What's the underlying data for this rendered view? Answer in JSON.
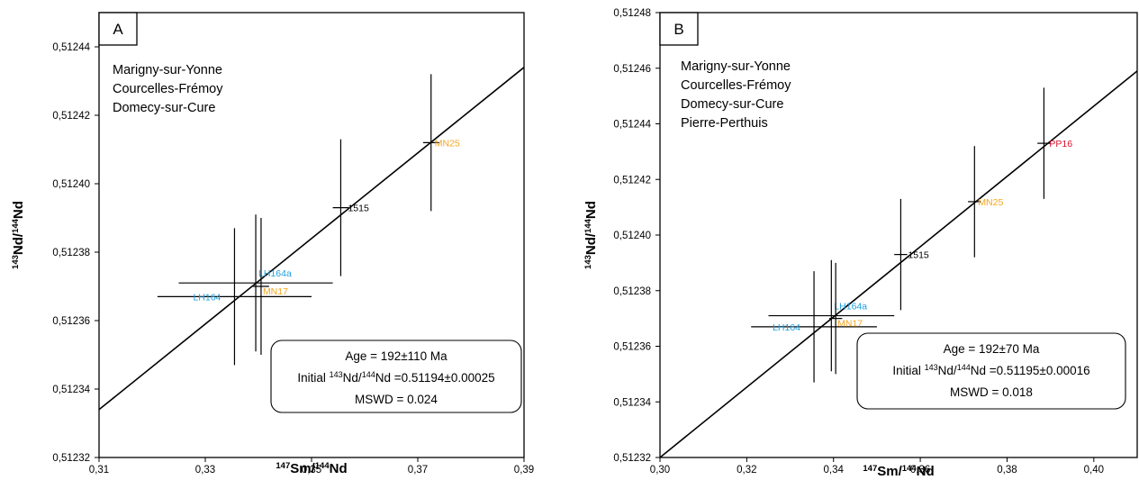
{
  "colors": {
    "black": "#000000",
    "orange": "#f4a51f",
    "blue": "#1f9fe0",
    "red": "#d8102c"
  },
  "chart_data": [
    {
      "type": "scatter",
      "panel_label": "A",
      "xlabel": {
        "pre": "147",
        "mid": "Sm/",
        "sup": "144",
        "post": "Nd"
      },
      "ylabel": {
        "pre": "143",
        "mid": "Nd/",
        "sup": "144",
        "post": "Nd"
      },
      "xlim": [
        0.31,
        0.39
      ],
      "ylim": [
        0.51232,
        0.51245
      ],
      "xticks": [
        0.31,
        0.33,
        0.35,
        0.37,
        0.39
      ],
      "xtick_labels": [
        "0,31",
        "0,33",
        "0,35",
        "0,37",
        "0,39"
      ],
      "yticks": [
        0.51232,
        0.51234,
        0.51236,
        0.51238,
        0.5124,
        0.51242,
        0.51244
      ],
      "ytick_labels": [
        "0,51232",
        "0,51234",
        "0,51236",
        "0,51238",
        "0,51240",
        "0,51242",
        "0,51244"
      ],
      "localities": [
        "Marigny-sur-Yonne",
        "Courcelles-Frémoy",
        "Domecy-sur-Cure"
      ],
      "points": [
        {
          "name": "LH164",
          "x": 0.3355,
          "y": 0.512367,
          "xerr": 0.0145,
          "yerr": 2e-05,
          "color": "blue"
        },
        {
          "name": "LH164a",
          "x": 0.3395,
          "y": 0.512371,
          "xerr": 0.0145,
          "yerr": 2e-05,
          "color": "blue"
        },
        {
          "name": "MN17",
          "x": 0.3405,
          "y": 0.51237,
          "xerr": 0.0015,
          "yerr": 2e-05,
          "color": "orange"
        },
        {
          "name": "1515",
          "x": 0.3555,
          "y": 0.512393,
          "xerr": 0.0015,
          "yerr": 2e-05,
          "color": "black"
        },
        {
          "name": "MN25",
          "x": 0.3725,
          "y": 0.512412,
          "xerr": 0.0015,
          "yerr": 2e-05,
          "color": "orange"
        }
      ],
      "isochron": {
        "x1": 0.31,
        "y1": 0.512334,
        "x2": 0.39,
        "y2": 0.512434
      },
      "annotation": {
        "age": "Age = 192±110 Ma",
        "initial_pre": "Initial ",
        "initial_sup1": "143",
        "initial_mid": "Nd/",
        "initial_sup2": "144",
        "initial_post": "Nd =0.51194±0.00025",
        "mswd": "MSWD = 0.024"
      }
    },
    {
      "type": "scatter",
      "panel_label": "B",
      "xlabel": {
        "pre": "147",
        "mid": "Sm/",
        "sup": "144",
        "post": "Nd"
      },
      "ylabel": {
        "pre": "143",
        "mid": "Nd/",
        "sup": "144",
        "post": "Nd"
      },
      "xlim": [
        0.3,
        0.41
      ],
      "ylim": [
        0.51232,
        0.51248
      ],
      "xticks": [
        0.3,
        0.32,
        0.34,
        0.36,
        0.38,
        0.4
      ],
      "xtick_labels": [
        "0,30",
        "0,32",
        "0,34",
        "0,36",
        "0,38",
        "0,40"
      ],
      "yticks": [
        0.51232,
        0.51234,
        0.51236,
        0.51238,
        0.5124,
        0.51242,
        0.51244,
        0.51246,
        0.51248
      ],
      "ytick_labels": [
        "0,51232",
        "0,51234",
        "0,51236",
        "0,51238",
        "0,51240",
        "0,51242",
        "0,51244",
        "0,51246",
        "0,51248"
      ],
      "localities": [
        "Marigny-sur-Yonne",
        "Courcelles-Frémoy",
        "Domecy-sur-Cure",
        "Pierre-Perthuis"
      ],
      "points": [
        {
          "name": "LH164",
          "x": 0.3355,
          "y": 0.512367,
          "xerr": 0.0145,
          "yerr": 2e-05,
          "color": "blue"
        },
        {
          "name": "LH164a",
          "x": 0.3395,
          "y": 0.512371,
          "xerr": 0.0145,
          "yerr": 2e-05,
          "color": "blue"
        },
        {
          "name": "MN17",
          "x": 0.3405,
          "y": 0.51237,
          "xerr": 0.0015,
          "yerr": 2e-05,
          "color": "orange"
        },
        {
          "name": "1515",
          "x": 0.3555,
          "y": 0.512393,
          "xerr": 0.0015,
          "yerr": 2e-05,
          "color": "black"
        },
        {
          "name": "MN25",
          "x": 0.3725,
          "y": 0.512412,
          "xerr": 0.0015,
          "yerr": 2e-05,
          "color": "orange"
        },
        {
          "name": "PP16",
          "x": 0.3885,
          "y": 0.512433,
          "xerr": 0.0015,
          "yerr": 2e-05,
          "color": "red"
        }
      ],
      "isochron": {
        "x1": 0.3,
        "y1": 0.51232,
        "x2": 0.41,
        "y2": 0.512459
      },
      "annotation": {
        "age": "Age = 192±70 Ma",
        "initial_pre": "Initial ",
        "initial_sup1": "143",
        "initial_mid": "Nd/",
        "initial_sup2": "144",
        "initial_post": "Nd =0.51195±0.00016",
        "mswd": "MSWD = 0.018"
      }
    }
  ]
}
